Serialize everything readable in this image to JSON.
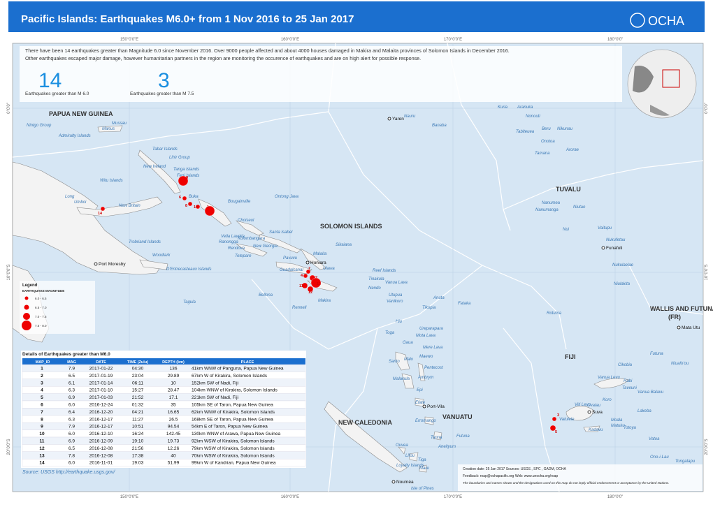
{
  "header": {
    "title": "Pacific Islands: Earthquakes M6.0+ from 1 Nov 2016 to 25 Jan 2017",
    "logo": "OCHA"
  },
  "coordinates": {
    "longitude": [
      "150°0'0\"E",
      "160°0'0\"E",
      "170°0'0\"E",
      "180°0'0\""
    ],
    "latitude": [
      "0°0'0\"",
      "10°0'0\"S",
      "20°0'0\"S"
    ]
  },
  "intro": {
    "lines": [
      "There have been 14 earthquakes greater than Magnitude 6.0 since November 2016.  Over 9000 people affected and about 4000 houses damaged in Makira and Malaita provinces of Solomon Islands in December 2016.",
      "Other earthquakes escaped major damage, however humanitarian partners in the region are monitoring the occurence of earthquakes and are on high alert for possible response."
    ]
  },
  "stats": [
    {
      "value": 14,
      "label": "Earthquakes greater than M 6.0"
    },
    {
      "value": 3,
      "label": "Earthquakes greater than M 7.5"
    }
  ],
  "legend": {
    "title": "Legend",
    "subtitle": "EARTHQUAKE MAGNITUDE",
    "items": [
      "6.0 - 6.5",
      "6.5 - 7.0",
      "7.0 - 7.5",
      "7.5 - 8.0"
    ]
  },
  "table": {
    "title": "Details of Earthquakes greater than M6.0",
    "columns": [
      "MAP_ID",
      "MAG",
      "DATE",
      "TIME (Zulu)",
      "DEPTH (km)",
      "PLACE"
    ],
    "rows": [
      [
        1,
        "7.9",
        "2017-01-22",
        "04:30",
        136,
        "41km WNW of Panguna, Papua New Guinea"
      ],
      [
        2,
        "6.5",
        "2017-01-19",
        "23:04",
        29.89,
        "67km W of Kirakira, Solomon Islands"
      ],
      [
        3,
        "6.1",
        "2017-01-14",
        "06:11",
        10,
        "152km SW of Nadi, Fiji"
      ],
      [
        4,
        "6.3",
        "2017-01-10",
        "15:27",
        28.47,
        "104km WNW of Kirakira, Solomon Islands"
      ],
      [
        5,
        "6.9",
        "2017-01-03",
        "21:52",
        17.1,
        "221km SW of Nadi, Fiji"
      ],
      [
        6,
        "6.0",
        "2016-12-24",
        "01:32",
        35,
        "105km SE of Taron, Papua New Guinea"
      ],
      [
        7,
        "6.4",
        "2016-12-20",
        "04:21",
        16.65,
        "62km WNW of Kirakira, Solomon Islands"
      ],
      [
        8,
        "6.3",
        "2016-12-17",
        "11:27",
        26.5,
        "168km SE of Taron, Papua New Guinea"
      ],
      [
        9,
        "7.9",
        "2016-12-17",
        "10:51",
        94.54,
        "54km E of Taron, Papua New Guinea"
      ],
      [
        10,
        "6.0",
        "2016-12-10",
        "16:24",
        142.45,
        "130km WNW of Arawa, Papua New Guinea"
      ],
      [
        11,
        "6.9",
        "2016-12-09",
        "19:10",
        19.73,
        "92km WSW of Kirakira, Solomon Islands"
      ],
      [
        12,
        "6.5",
        "2016-12-08",
        "21:56",
        12.26,
        "79km WSW of Kirakira, Solomon Islands"
      ],
      [
        13,
        "7.8",
        "2016-12-08",
        "17:38",
        40,
        "70km WSW of Kirakira, Solomon Islands"
      ],
      [
        14,
        "6.0",
        "2016-11-01",
        "19:03",
        51.99,
        "99km W of Kandrian, Papua New Guinea"
      ]
    ]
  },
  "source": "Source: USGS http://earthquake.usgs.gov/",
  "footer": {
    "creation": "Creation date: 25 Jan 2017   Sources: USGS , SPC , GADM, OCHA",
    "feedback": "Feedback: roap@ochapacific.org   Web: www.unocha.org/roap",
    "disclaimer": "The boundaries and names shown and the designations used on this map do not imply official endorsement or acceptance by the United Nations."
  },
  "countries": [
    "PAPUA NEW GUINEA",
    "SOLOMON ISLANDS",
    "TUVALU",
    "VANUATU",
    "NEW CALEDONIA",
    "FIJI",
    "WALLIS AND FUTUNA",
    "(FR)"
  ],
  "capitals": [
    "Port Moresby",
    "Honiara",
    "Yaren",
    "Funafuti",
    "Port-Vila",
    "Suva",
    "Nouméa",
    "Mata Utu"
  ],
  "places": [
    "Nauru",
    "Manus",
    "Ninigo Group",
    "Admiralty Islands",
    "Mussau",
    "Tabar Islands",
    "Lihir Group",
    "New Ireland",
    "Tanga Islands",
    "Feni Islands",
    "Witu Islands",
    "Buka",
    "Bougainville",
    "New Britain",
    "Umboi",
    "Long",
    "Ontong Java",
    "Choiseul",
    "Vella Lavella",
    "Kolombangara",
    "Ranongga",
    "Santa Isabel",
    "New Georgia",
    "Rendova",
    "Tetepare",
    "Pavuvu",
    "Malaita",
    "Sikaiana",
    "Guadalcanal",
    "Ulawa",
    "Makira",
    "Rennell",
    "Bellona",
    "Trobriand Islands",
    "Woodlark",
    "D'Entrecasteaux Islands",
    "Tagula",
    "Reef Islands",
    "Tinakula",
    "Vanua Lava",
    "Nendo",
    "Utupua",
    "Vanikoro",
    "Anuta",
    "Fataka",
    "Tikopia",
    "Rotuma",
    "Hiu",
    "Toga",
    "Ureparapara",
    "Mota Lava",
    "Gaua",
    "Mere Lava",
    "Santo",
    "Malo",
    "Maewo",
    "Pentecost",
    "Malakula",
    "Ambrym",
    "Epi",
    "Efate",
    "Erromango",
    "Tanna",
    "Futuna",
    "Aneityum",
    "Ouvea",
    "Lifou",
    "Tiga",
    "Mare",
    "Loyalty Islands",
    "Isle of Pines",
    "Cikobia",
    "Vanua Levu",
    "Rabi",
    "Taveuni",
    "Vanua Balavu",
    "Koro",
    "Ovalau",
    "Viti Levu",
    "Lakeba",
    "Kadavu",
    "Vatulele",
    "Moala",
    "Totoya",
    "Matuku",
    "Vatoa",
    "Ono-i-Lau",
    "Futuna",
    "Niuafo'ou",
    "Tongatapu",
    "Kuria",
    "Aranuka",
    "Nonouti",
    "Banaba",
    "Tabiteuea",
    "Beru",
    "Nikunau",
    "Onotoa",
    "Tamana",
    "Arorae",
    "Nanumea",
    "Niutao",
    "Nanumanga",
    "Nui",
    "Vaitupu",
    "Nukufetau",
    "Nukulaelae",
    "Niulakita"
  ]
}
